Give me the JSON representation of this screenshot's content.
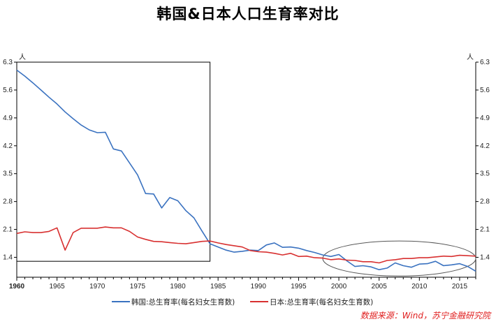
{
  "title": "韩国&日本人口生育率对比",
  "source": "数据来源：Wind，苏宁金融研究院",
  "unit_left": "人",
  "unit_right": "人",
  "colors": {
    "korea": "#3a72c0",
    "japan": "#d83030",
    "axis": "#000000",
    "annotation": "#555555"
  },
  "chart_data": {
    "type": "line",
    "title": "韩国&日本人口生育率对比",
    "xlabel": "",
    "ylabel": "人",
    "xlim": [
      1960,
      2017
    ],
    "ylim": [
      0.9,
      6.3
    ],
    "yticks": [
      1.4,
      2.1,
      2.8,
      3.5,
      4.2,
      4.9,
      5.6,
      6.3
    ],
    "xticks": [
      1960,
      1965,
      1970,
      1975,
      1980,
      1985,
      1990,
      1995,
      2000,
      2005,
      2010,
      2015
    ],
    "grid": false,
    "legend": "bottom",
    "series": [
      {
        "name": "韩国:总生育率(每名妇女生育数)",
        "color": "#3a72c0",
        "x": [
          1960,
          1961,
          1962,
          1963,
          1964,
          1965,
          1966,
          1967,
          1968,
          1969,
          1970,
          1971,
          1972,
          1973,
          1974,
          1975,
          1976,
          1977,
          1978,
          1979,
          1980,
          1981,
          1982,
          1983,
          1984,
          1985,
          1986,
          1987,
          1988,
          1989,
          1990,
          1991,
          1992,
          1993,
          1994,
          1995,
          1996,
          1997,
          1998,
          1999,
          2000,
          2001,
          2002,
          2003,
          2004,
          2005,
          2006,
          2007,
          2008,
          2009,
          2010,
          2011,
          2012,
          2013,
          2014,
          2015,
          2016,
          2017
        ],
        "values": [
          6.1,
          5.95,
          5.78,
          5.6,
          5.42,
          5.25,
          5.05,
          4.88,
          4.72,
          4.6,
          4.53,
          4.54,
          4.12,
          4.07,
          3.77,
          3.47,
          3.0,
          2.99,
          2.64,
          2.9,
          2.82,
          2.57,
          2.39,
          2.06,
          1.74,
          1.66,
          1.58,
          1.53,
          1.55,
          1.58,
          1.57,
          1.71,
          1.76,
          1.65,
          1.66,
          1.63,
          1.57,
          1.52,
          1.46,
          1.42,
          1.47,
          1.31,
          1.17,
          1.19,
          1.16,
          1.09,
          1.13,
          1.26,
          1.19,
          1.15,
          1.23,
          1.24,
          1.3,
          1.19,
          1.21,
          1.24,
          1.17,
          1.05
        ]
      },
      {
        "name": "日本:总生育率(每名妇女生育数)",
        "color": "#d83030",
        "x": [
          1960,
          1961,
          1962,
          1963,
          1964,
          1965,
          1966,
          1967,
          1968,
          1969,
          1970,
          1971,
          1972,
          1973,
          1974,
          1975,
          1976,
          1977,
          1978,
          1979,
          1980,
          1981,
          1982,
          1983,
          1984,
          1985,
          1986,
          1987,
          1988,
          1989,
          1990,
          1991,
          1992,
          1993,
          1994,
          1995,
          1996,
          1997,
          1998,
          1999,
          2000,
          2001,
          2002,
          2003,
          2004,
          2005,
          2006,
          2007,
          2008,
          2009,
          2010,
          2011,
          2012,
          2013,
          2014,
          2015,
          2016,
          2017
        ],
        "values": [
          2.0,
          2.04,
          2.02,
          2.02,
          2.05,
          2.14,
          1.58,
          2.02,
          2.13,
          2.13,
          2.13,
          2.16,
          2.14,
          2.14,
          2.05,
          1.91,
          1.85,
          1.8,
          1.79,
          1.77,
          1.75,
          1.74,
          1.77,
          1.8,
          1.81,
          1.76,
          1.72,
          1.69,
          1.66,
          1.57,
          1.54,
          1.53,
          1.5,
          1.46,
          1.5,
          1.42,
          1.43,
          1.39,
          1.38,
          1.34,
          1.36,
          1.33,
          1.32,
          1.29,
          1.29,
          1.26,
          1.32,
          1.34,
          1.37,
          1.37,
          1.39,
          1.39,
          1.41,
          1.43,
          1.42,
          1.45,
          1.44,
          1.43
        ]
      }
    ]
  }
}
